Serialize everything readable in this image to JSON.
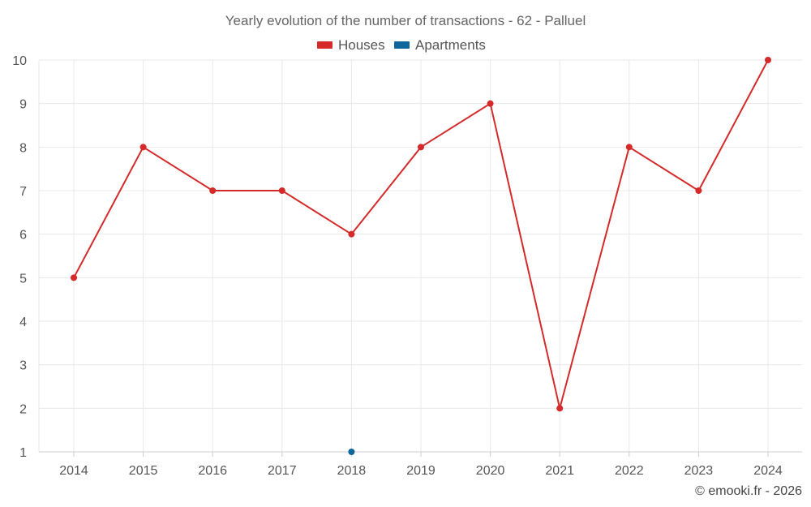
{
  "chart_data": {
    "type": "line",
    "title": "Yearly evolution of the number of transactions - 62 - Palluel",
    "xlabel": "",
    "ylabel": "",
    "x": [
      "2014",
      "2015",
      "2016",
      "2017",
      "2018",
      "2019",
      "2020",
      "2021",
      "2022",
      "2023",
      "2024"
    ],
    "ylim": [
      1,
      10
    ],
    "yticks": [
      "1",
      "2",
      "3",
      "4",
      "5",
      "6",
      "7",
      "8",
      "9",
      "10"
    ],
    "grid": true,
    "legend_position": "top-center",
    "series": [
      {
        "name": "Houses",
        "color": "#d42a2a",
        "values": [
          5,
          8,
          7,
          7,
          6,
          8,
          9,
          2,
          8,
          7,
          10
        ]
      },
      {
        "name": "Apartments",
        "color": "#0e6699",
        "values": [
          null,
          null,
          null,
          null,
          1,
          null,
          null,
          null,
          null,
          null,
          null
        ]
      }
    ],
    "credit": "© emooki.fr - 2026"
  }
}
